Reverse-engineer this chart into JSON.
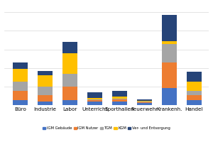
{
  "categories": [
    "Büro",
    "Industrie",
    "Labor",
    "Unterricht",
    "Sporthallen",
    "Feuerwehr",
    "Krankenh.",
    "Handel"
  ],
  "series": {
    "IGM Gebäude": [
      5,
      4,
      5,
      4,
      4,
      2,
      18,
      5
    ],
    "IGM Nutzer": [
      10,
      7,
      15,
      1,
      2,
      1,
      28,
      6
    ],
    "TGM": [
      10,
      9,
      14,
      1,
      1,
      0.5,
      20,
      4
    ],
    "KGM": [
      14,
      12,
      22,
      1.5,
      2.5,
      1,
      3,
      10
    ],
    "Ver- und Entsorgung": [
      7,
      5,
      12,
      6,
      6,
      2,
      28,
      11
    ]
  },
  "colors": {
    "IGM Gebäude": "#4472C4",
    "IGM Nutzer": "#ED7D31",
    "TGM": "#A5A5A5",
    "KGM": "#FFC000",
    "Ver- und Entsorgung": "#264478"
  },
  "legend_order": [
    "IGM Gebäude",
    "IGM Nutzer",
    "TGM",
    "KGM",
    "Ver- und Entsorgung"
  ],
  "background_color": "#ffffff",
  "grid_color": "#d9d9d9",
  "bar_width": 0.6,
  "figsize": [
    3.0,
    2.0
  ],
  "dpi": 100
}
